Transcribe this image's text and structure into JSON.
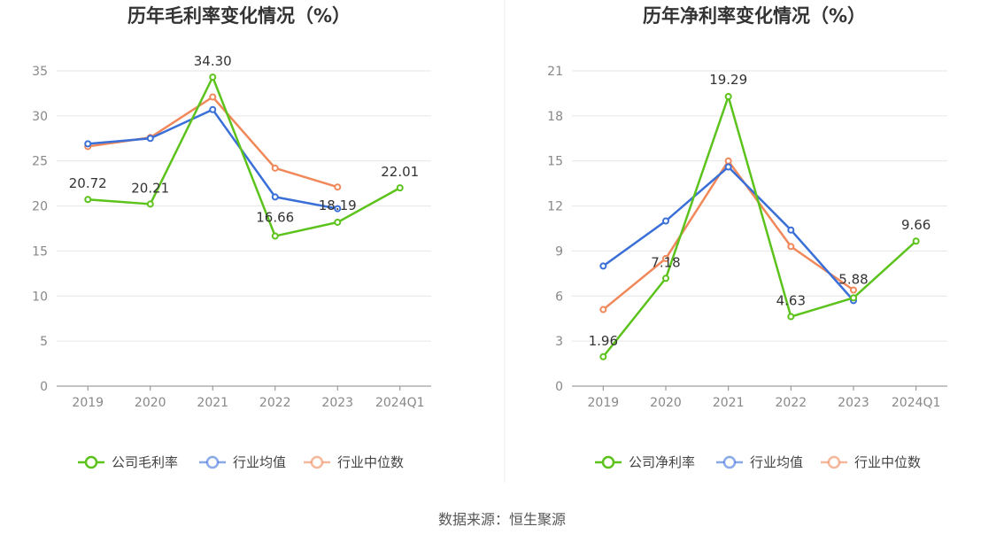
{
  "source": "数据来源：恒生聚源",
  "colors": {
    "company": "#5cc21c",
    "avg": "#3a6fd8",
    "median": "#f0885a",
    "grid": "#e6e6e6",
    "axis": "#888888"
  },
  "chart_data": [
    {
      "type": "line",
      "title": "历年毛利率变化情况（%）",
      "categories": [
        "2019",
        "2020",
        "2021",
        "2022",
        "2023",
        "2024Q1"
      ],
      "ylim": [
        0,
        35
      ],
      "yticks": [
        0,
        5,
        10,
        15,
        20,
        25,
        30,
        35
      ],
      "grid": true,
      "legend_position": "bottom",
      "series": [
        {
          "name": "公司毛利率",
          "key": "company",
          "values": [
            20.72,
            20.21,
            34.3,
            16.66,
            18.19,
            22.01
          ],
          "labels": [
            "20.72",
            "20.21",
            "34.30",
            "16.66",
            "18.19",
            "22.01"
          ]
        },
        {
          "name": "行业均值",
          "key": "avg",
          "values": [
            26.9,
            27.5,
            30.7,
            21.0,
            19.7,
            null
          ]
        },
        {
          "name": "行业中位数",
          "key": "median",
          "values": [
            26.6,
            27.6,
            32.1,
            24.2,
            22.1,
            null
          ]
        }
      ]
    },
    {
      "type": "line",
      "title": "历年净利率变化情况（%）",
      "categories": [
        "2019",
        "2020",
        "2021",
        "2022",
        "2023",
        "2024Q1"
      ],
      "ylim": [
        0,
        21
      ],
      "yticks": [
        0,
        3,
        6,
        9,
        12,
        15,
        18,
        21
      ],
      "grid": true,
      "legend_position": "bottom",
      "series": [
        {
          "name": "公司净利率",
          "key": "company",
          "values": [
            1.96,
            7.18,
            19.29,
            4.63,
            5.88,
            9.66
          ],
          "labels": [
            "1.96",
            "7.18",
            "19.29",
            "4.63",
            "5.88",
            "9.66"
          ]
        },
        {
          "name": "行业均值",
          "key": "avg",
          "values": [
            8.0,
            11.0,
            14.6,
            10.4,
            5.7,
            null
          ]
        },
        {
          "name": "行业中位数",
          "key": "median",
          "values": [
            5.1,
            8.5,
            15.0,
            9.3,
            6.4,
            null
          ]
        }
      ]
    }
  ]
}
